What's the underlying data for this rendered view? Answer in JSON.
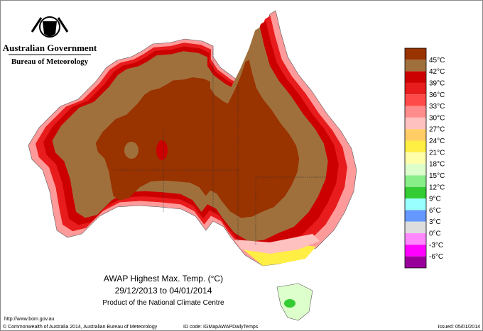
{
  "header": {
    "government": "Australian Government",
    "bureau": "Bureau of Meteorology"
  },
  "legend": {
    "labels": [
      "45°C",
      "42°C",
      "39°C",
      "36°C",
      "33°C",
      "30°C",
      "27°C",
      "24°C",
      "21°C",
      "18°C",
      "15°C",
      "12°C",
      "9°C",
      "6°C",
      "3°C",
      "0°C",
      "-3°C",
      "-6°C"
    ],
    "colors": [
      "#993300",
      "#a0703c",
      "#cc0000",
      "#e81c1c",
      "#ff4a4a",
      "#ff8c8c",
      "#ffc0c0",
      "#ffcc66",
      "#ffee44",
      "#ffffaa",
      "#ddffcc",
      "#88ee88",
      "#33cc33",
      "#99ffff",
      "#6699ff",
      "#dddddd",
      "#ff88ff",
      "#ff00ff",
      "#990099"
    ]
  },
  "title": {
    "line1": "AWAP Highest Max. Temp. (°C)",
    "line2": "29/12/2013 to 04/01/2014",
    "line3": "Product of the National Climate Centre"
  },
  "footer": {
    "url": "http://www.bom.gov.au",
    "copyright": "© Commonwealth of Australia 2014, Australian Bureau of Meteorology",
    "id_code": "ID code: IGMapAWAPDailyTemps",
    "issued": "Issued: 05/01/2014"
  }
}
